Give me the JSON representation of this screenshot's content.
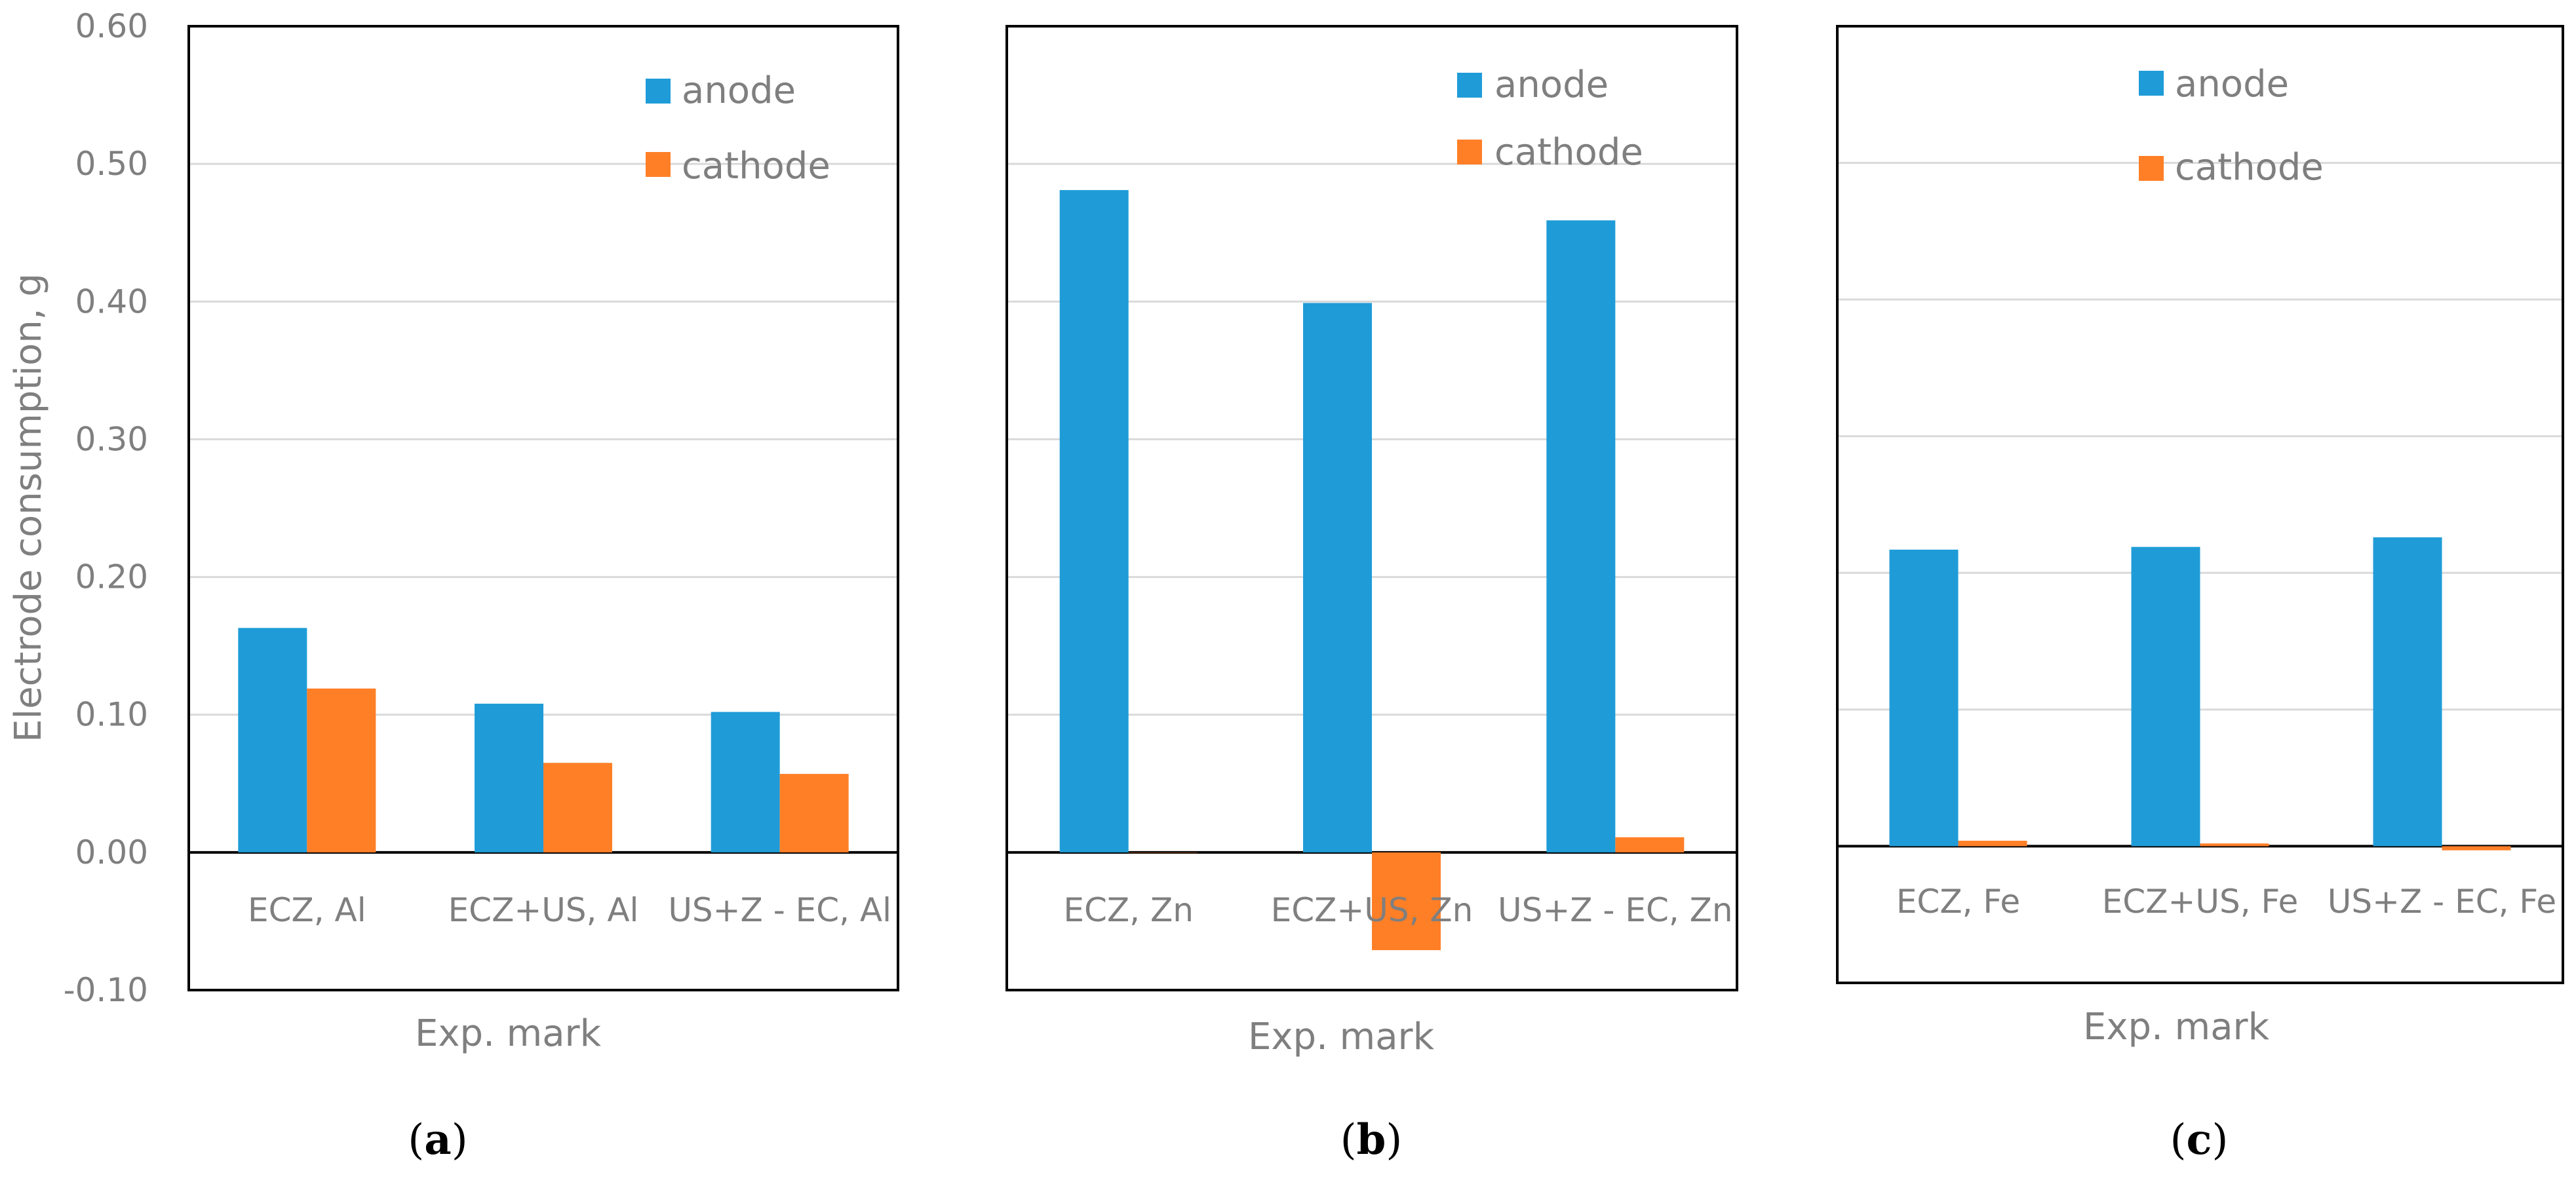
{
  "chart_data": [
    {
      "type": "bar",
      "panel": "a",
      "categories": [
        "ECZ, Al",
        "ECZ+US, Al",
        "US+Z - EC, Al"
      ],
      "series": [
        {
          "name": "anode",
          "values": [
            0.163,
            0.108,
            0.102
          ]
        },
        {
          "name": "cathode",
          "values": [
            0.119,
            0.065,
            0.057
          ]
        }
      ],
      "xlabel": "Exp. mark",
      "ylabel": "Electrode consumption, g",
      "ylim": [
        -0.1,
        0.6
      ],
      "yticks": [
        "0.60",
        "0.50",
        "0.40",
        "0.30",
        "0.20",
        "0.10",
        "0.00",
        "-0.10"
      ],
      "grid": true,
      "legend": "top-right"
    },
    {
      "type": "bar",
      "panel": "b",
      "categories": [
        "ECZ, Zn",
        "ECZ+US, Zn",
        "US+Z - EC, Zn"
      ],
      "series": [
        {
          "name": "anode",
          "values": [
            0.481,
            0.399,
            0.459
          ]
        },
        {
          "name": "cathode",
          "values": [
            0.0,
            -0.071,
            0.011
          ]
        }
      ],
      "xlabel": "Exp. mark",
      "ylabel": "",
      "ylim": [
        -0.1,
        0.6
      ],
      "grid": true,
      "legend": "top-right"
    },
    {
      "type": "bar",
      "panel": "c",
      "categories": [
        "ECZ, Fe",
        "ECZ+US, Fe",
        "US+Z - EC, Fe"
      ],
      "series": [
        {
          "name": "anode",
          "values": [
            0.217,
            0.219,
            0.226
          ]
        },
        {
          "name": "cathode",
          "values": [
            0.004,
            0.002,
            -0.003
          ]
        }
      ],
      "xlabel": "Exp. mark",
      "ylabel": "",
      "ylim": [
        -0.1,
        0.6
      ],
      "grid": true,
      "legend": "top-right"
    }
  ],
  "panel_labels": [
    "a",
    "b",
    "c"
  ],
  "colors": {
    "anode": "#1f9cd8",
    "cathode": "#ff7f27"
  }
}
